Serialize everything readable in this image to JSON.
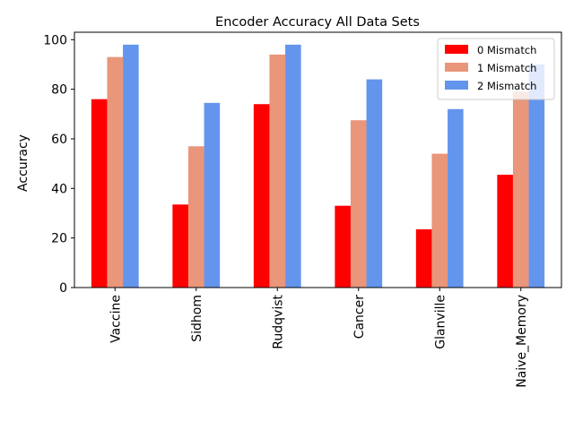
{
  "chart_data": {
    "type": "bar",
    "title": "Encoder Accuracy All Data Sets",
    "xlabel": "",
    "ylabel": "Accuracy",
    "categories": [
      "Vaccine",
      "Sidhom",
      "Rudqvist",
      "Cancer",
      "Glanville",
      "Naive_Memory"
    ],
    "series": [
      {
        "name": "0 Mismatch",
        "color": "#ff0000",
        "values": [
          76,
          33.5,
          74,
          33,
          23.5,
          45.5
        ]
      },
      {
        "name": "1 Mismatch",
        "color": "#e9967a",
        "values": [
          93,
          57,
          94,
          67.5,
          54,
          79
        ]
      },
      {
        "name": "2 Mismatch",
        "color": "#6495ed",
        "values": [
          98,
          74.5,
          98,
          84,
          72,
          90
        ]
      }
    ],
    "ylim": [
      0,
      103
    ],
    "yticks": [
      0,
      20,
      40,
      60,
      80,
      100
    ],
    "grid": false,
    "legend_position": "top-right"
  }
}
